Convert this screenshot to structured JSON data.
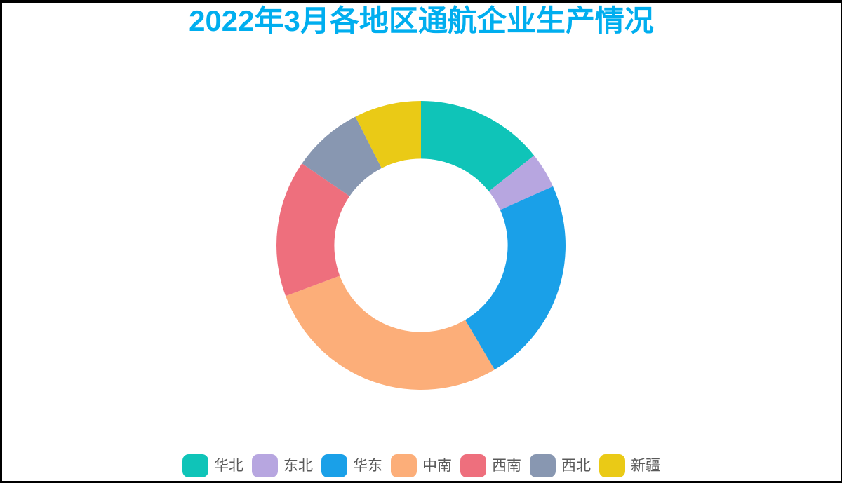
{
  "page": {
    "background_color": "#ffffff",
    "frame_color": "#000000"
  },
  "header": {
    "title": "2022年3月各地区通航企业生产情况",
    "title_color": "#00AEEF"
  },
  "legend": {
    "position": "bottom",
    "text_color": "#595959"
  },
  "chart_data": {
    "type": "pie",
    "subtype": "donut",
    "title": "2022年3月各地区通航企业生产情况",
    "categories": [
      "华北",
      "东北",
      "华东",
      "中南",
      "西南",
      "西北",
      "新疆"
    ],
    "values_percent": [
      14.3,
      4.0,
      23.2,
      27.8,
      15.3,
      7.9,
      7.5
    ],
    "colors": [
      "#0FC4B8",
      "#B7A6E0",
      "#1AA0E8",
      "#FCAE79",
      "#EE6F7D",
      "#8897B1",
      "#EACA16"
    ],
    "start_angle_deg": 0,
    "direction": "clockwise",
    "inner_radius_ratio": 0.6,
    "legend_position": "bottom",
    "data_labels": "none",
    "grid": false
  }
}
